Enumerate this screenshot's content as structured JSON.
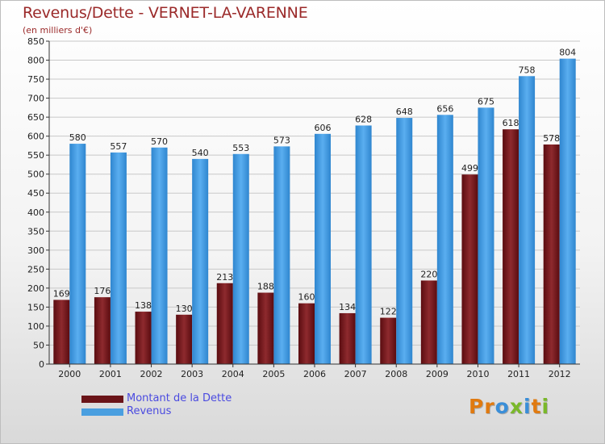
{
  "title": "Revenus/Dette - VERNET-LA-VARENNE",
  "subtitle": "(en milliers d'€)",
  "logo": {
    "text": "Proxiti",
    "letter_colors": [
      "#e07a10",
      "#e07a10",
      "#3a8ed8",
      "#7ab82a",
      "#3a8ed8",
      "#e07a10",
      "#7ab82a"
    ]
  },
  "colors": {
    "dette": "#7a1f22",
    "revenus": "#4a9fe0"
  },
  "chart_data": {
    "type": "bar",
    "title": "Revenus/Dette - VERNET-LA-VARENNE",
    "ylabel": "(en milliers d'€)",
    "xlabel": "",
    "categories": [
      "2000",
      "2001",
      "2002",
      "2003",
      "2004",
      "2005",
      "2006",
      "2007",
      "2008",
      "2009",
      "2010",
      "2011",
      "2012"
    ],
    "ylim": [
      0,
      850
    ],
    "yticks": [
      0,
      50,
      100,
      150,
      200,
      250,
      300,
      350,
      400,
      450,
      500,
      550,
      600,
      650,
      700,
      750,
      800,
      850
    ],
    "grid": true,
    "legend_position": "bottom-left",
    "series": [
      {
        "name": "Montant de la Dette",
        "values": [
          169,
          176,
          138,
          130,
          213,
          188,
          160,
          134,
          122,
          220,
          499,
          618,
          578
        ]
      },
      {
        "name": "Revenus",
        "values": [
          580,
          557,
          570,
          540,
          553,
          573,
          606,
          628,
          648,
          656,
          675,
          758,
          804
        ]
      }
    ]
  }
}
